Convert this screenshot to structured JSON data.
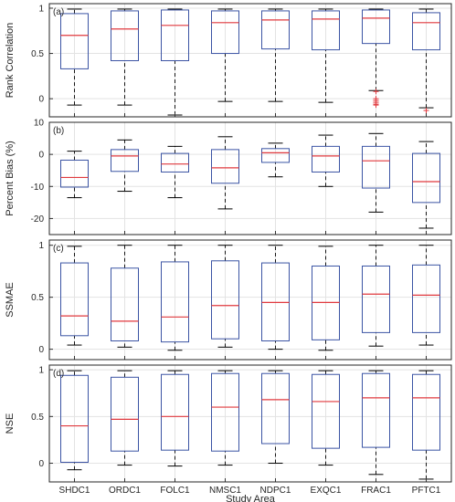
{
  "chart_data": {
    "type": "boxplot",
    "xlabel": "Study Area",
    "categories": [
      "SHDC1",
      "ORDC1",
      "FOLC1",
      "NMSC1",
      "NDPC1",
      "EXQC1",
      "FRAC1",
      "PFTC1"
    ],
    "grid": true,
    "colors": {
      "box": "#3b54a4",
      "median": "#e0393e",
      "whisker": "#000000",
      "outlier": "#e0393e",
      "grid": "#e3e3e3"
    },
    "panels": [
      {
        "panel_label": "(a)",
        "ylabel": "Rank Correlation",
        "ylim": [
          -0.2,
          1.05
        ],
        "yticks": [
          0,
          0.5,
          1
        ],
        "ytick_labels": [
          "0",
          "0.5",
          "1"
        ],
        "boxes": [
          {
            "whislo": -0.07,
            "q1": 0.33,
            "med": 0.7,
            "q3": 0.94,
            "whishi": 0.99,
            "fliers": []
          },
          {
            "whislo": -0.07,
            "q1": 0.42,
            "med": 0.77,
            "q3": 0.97,
            "whishi": 0.99,
            "fliers": []
          },
          {
            "whislo": -0.18,
            "q1": 0.42,
            "med": 0.81,
            "q3": 0.98,
            "whishi": 0.99,
            "fliers": []
          },
          {
            "whislo": -0.03,
            "q1": 0.5,
            "med": 0.84,
            "q3": 0.97,
            "whishi": 0.99,
            "fliers": []
          },
          {
            "whislo": -0.03,
            "q1": 0.55,
            "med": 0.87,
            "q3": 0.97,
            "whishi": 0.99,
            "fliers": []
          },
          {
            "whislo": -0.04,
            "q1": 0.54,
            "med": 0.88,
            "q3": 0.97,
            "whishi": 0.99,
            "fliers": []
          },
          {
            "whislo": 0.09,
            "q1": 0.61,
            "med": 0.89,
            "q3": 0.98,
            "whishi": 0.99,
            "fliers": [
              0.08,
              0.0,
              -0.02,
              -0.04,
              -0.06,
              -0.07
            ]
          },
          {
            "whislo": -0.1,
            "q1": 0.54,
            "med": 0.84,
            "q3": 0.95,
            "whishi": 0.99,
            "fliers": [
              -0.13
            ]
          }
        ]
      },
      {
        "panel_label": "(b)",
        "ylabel": "Percent Bias (%)",
        "ylim": [
          -25,
          10
        ],
        "yticks": [
          -20,
          -10,
          0,
          10
        ],
        "ytick_labels": [
          "-20",
          "-10",
          "0",
          "10"
        ],
        "boxes": [
          {
            "whislo": -13.5,
            "q1": -10.2,
            "med": -7.2,
            "q3": -1.8,
            "whishi": 1.0,
            "fliers": []
          },
          {
            "whislo": -11.5,
            "q1": -5.3,
            "med": -0.5,
            "q3": 1.5,
            "whishi": 4.5,
            "fliers": []
          },
          {
            "whislo": -13.5,
            "q1": -5.5,
            "med": -3.0,
            "q3": 0.3,
            "whishi": 2.5,
            "fliers": []
          },
          {
            "whislo": -17.0,
            "q1": -9.0,
            "med": -4.2,
            "q3": 1.5,
            "whishi": 5.5,
            "fliers": []
          },
          {
            "whislo": -7.0,
            "q1": -2.5,
            "med": 0.5,
            "q3": 1.8,
            "whishi": 3.5,
            "fliers": []
          },
          {
            "whislo": -10.0,
            "q1": -5.5,
            "med": -0.5,
            "q3": 2.5,
            "whishi": 6.0,
            "fliers": []
          },
          {
            "whislo": -18.0,
            "q1": -10.5,
            "med": -2.0,
            "q3": 2.5,
            "whishi": 6.5,
            "fliers": []
          },
          {
            "whislo": -23.0,
            "q1": -15.0,
            "med": -8.5,
            "q3": 0.3,
            "whishi": 4.0,
            "fliers": []
          }
        ]
      },
      {
        "panel_label": "(c)",
        "ylabel": "SSMAE",
        "ylim": [
          -0.1,
          1.05
        ],
        "yticks": [
          0,
          0.5,
          1
        ],
        "ytick_labels": [
          "0",
          "0.5",
          "1"
        ],
        "boxes": [
          {
            "whislo": 0.04,
            "q1": 0.13,
            "med": 0.32,
            "q3": 0.83,
            "whishi": 0.99,
            "fliers": []
          },
          {
            "whislo": 0.02,
            "q1": 0.08,
            "med": 0.27,
            "q3": 0.78,
            "whishi": 1.0,
            "fliers": []
          },
          {
            "whislo": -0.01,
            "q1": 0.07,
            "med": 0.31,
            "q3": 0.84,
            "whishi": 1.0,
            "fliers": []
          },
          {
            "whislo": 0.02,
            "q1": 0.1,
            "med": 0.42,
            "q3": 0.85,
            "whishi": 1.0,
            "fliers": []
          },
          {
            "whislo": 0.0,
            "q1": 0.08,
            "med": 0.45,
            "q3": 0.83,
            "whishi": 1.0,
            "fliers": []
          },
          {
            "whislo": -0.01,
            "q1": 0.09,
            "med": 0.45,
            "q3": 0.8,
            "whishi": 0.99,
            "fliers": []
          },
          {
            "whislo": 0.03,
            "q1": 0.16,
            "med": 0.53,
            "q3": 0.8,
            "whishi": 1.0,
            "fliers": []
          },
          {
            "whislo": 0.04,
            "q1": 0.16,
            "med": 0.52,
            "q3": 0.81,
            "whishi": 1.0,
            "fliers": []
          }
        ]
      },
      {
        "panel_label": "(d)",
        "ylabel": "NSE",
        "ylim": [
          -0.2,
          1.05
        ],
        "yticks": [
          0,
          0.5,
          1
        ],
        "ytick_labels": [
          "0",
          "0.5",
          "1"
        ],
        "boxes": [
          {
            "whislo": -0.07,
            "q1": 0.01,
            "med": 0.4,
            "q3": 0.94,
            "whishi": 0.99,
            "fliers": []
          },
          {
            "whislo": -0.02,
            "q1": 0.13,
            "med": 0.47,
            "q3": 0.92,
            "whishi": 0.99,
            "fliers": []
          },
          {
            "whislo": -0.03,
            "q1": 0.14,
            "med": 0.5,
            "q3": 0.95,
            "whishi": 0.99,
            "fliers": []
          },
          {
            "whislo": -0.02,
            "q1": 0.13,
            "med": 0.6,
            "q3": 0.96,
            "whishi": 0.99,
            "fliers": []
          },
          {
            "whislo": 0.0,
            "q1": 0.21,
            "med": 0.68,
            "q3": 0.96,
            "whishi": 0.99,
            "fliers": []
          },
          {
            "whislo": -0.02,
            "q1": 0.16,
            "med": 0.66,
            "q3": 0.95,
            "whishi": 0.99,
            "fliers": []
          },
          {
            "whislo": -0.12,
            "q1": 0.17,
            "med": 0.7,
            "q3": 0.96,
            "whishi": 0.99,
            "fliers": []
          },
          {
            "whislo": -0.17,
            "q1": 0.14,
            "med": 0.7,
            "q3": 0.95,
            "whishi": 0.99,
            "fliers": []
          }
        ]
      }
    ]
  }
}
